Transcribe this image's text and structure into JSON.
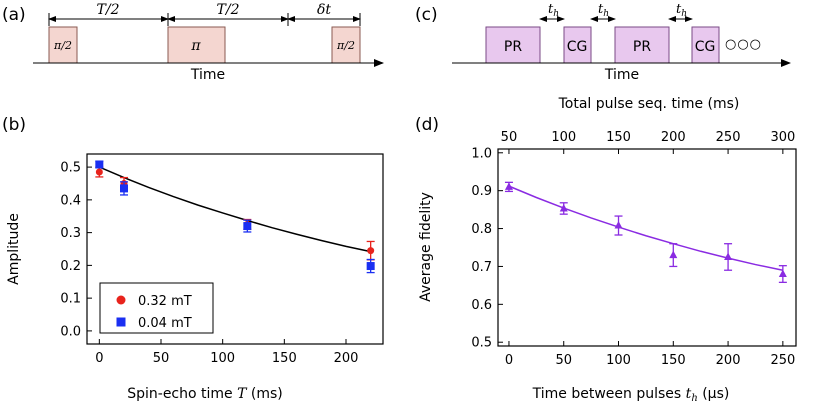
{
  "panels": {
    "a": "(a)",
    "b": "(b)",
    "c": "(c)",
    "d": "(d)"
  },
  "colors": {
    "spin_echo_pulse_fill": "#f4d6d0",
    "spin_echo_pulse_stroke": "#8a5a52",
    "seq_box_fill": "#e8c8ee",
    "seq_box_stroke": "#7a4a86",
    "red_series": "#e8231c",
    "blue_series": "#1a2ff2",
    "fit_black": "#000000",
    "purple": "#8a2be2",
    "circle_stroke": "#6a4a7a"
  },
  "diagram_a": {
    "time_label": "Time",
    "interval_1": "T/2",
    "interval_2": "T/2",
    "interval_3": "δt",
    "pulse_1": "π/2",
    "pulse_2": "π",
    "pulse_3": "π/2"
  },
  "diagram_c": {
    "time_label": "Time",
    "boxes": [
      "PR",
      "CG",
      "PR",
      "CG"
    ],
    "gap_label": "t",
    "gap_sub": "h",
    "ellipsis": "○○○"
  },
  "chart_data": [
    {
      "type": "scatter",
      "panel": "b",
      "xlabel_prefix": "Spin-echo time ",
      "xlabel_var": "T",
      "xlabel_suffix": " (ms)",
      "ylabel": "Amplitude",
      "xlim": [
        -10,
        230
      ],
      "ylim": [
        -0.04,
        0.54
      ],
      "xticks": [
        0,
        50,
        100,
        150,
        200
      ],
      "yticks": [
        0.0,
        0.1,
        0.2,
        0.3,
        0.4,
        0.5
      ],
      "ytick_labels": [
        "0.0",
        "0.1",
        "0.2",
        "0.3",
        "0.4",
        "0.5"
      ],
      "series": [
        {
          "name": "0.32 mT",
          "marker": "circle",
          "color": "#e8231c",
          "x": [
            0,
            20,
            120,
            220
          ],
          "y": [
            0.485,
            0.45,
            0.325,
            0.245
          ],
          "err": [
            0.015,
            0.018,
            0.015,
            0.028
          ]
        },
        {
          "name": "0.04 mT",
          "marker": "square",
          "color": "#1a2ff2",
          "x": [
            0,
            20,
            120,
            220
          ],
          "y": [
            0.508,
            0.435,
            0.32,
            0.198
          ],
          "err": [
            0.01,
            0.02,
            0.018,
            0.02
          ]
        }
      ],
      "fit": {
        "color": "#000000",
        "x": [
          0,
          20,
          40,
          60,
          80,
          100,
          120,
          140,
          160,
          180,
          200,
          220
        ],
        "y": [
          0.5,
          0.468,
          0.438,
          0.41,
          0.384,
          0.36,
          0.337,
          0.315,
          0.295,
          0.276,
          0.258,
          0.242
        ]
      },
      "legend": {
        "position": "lower-left",
        "entries": [
          "0.32 mT",
          "0.04 mT"
        ]
      }
    },
    {
      "type": "scatter",
      "panel": "d",
      "xlabel_prefix": "Time between pulses ",
      "xlabel_var": "t",
      "xlabel_sub": "h",
      "xlabel_suffix": " (μs)",
      "ylabel": "Average fidelity",
      "top_xlabel": "Total pulse seq. time (ms)",
      "xlim": [
        -10,
        262
      ],
      "ylim": [
        0.49,
        1.01
      ],
      "xticks": [
        0,
        50,
        100,
        150,
        200,
        250
      ],
      "top_xticks": [
        50,
        100,
        150,
        200,
        250,
        300
      ],
      "yticks": [
        0.5,
        0.6,
        0.7,
        0.8,
        0.9,
        1.0
      ],
      "ytick_labels": [
        "0.5",
        "0.6",
        "0.7",
        "0.8",
        "0.9",
        "1.0"
      ],
      "series": [
        {
          "name": "fidelity",
          "marker": "triangle",
          "color": "#8a2be2",
          "x": [
            0,
            50,
            100,
            150,
            200,
            250
          ],
          "y": [
            0.91,
            0.853,
            0.808,
            0.73,
            0.725,
            0.68
          ],
          "err": [
            0.012,
            0.015,
            0.025,
            0.03,
            0.035,
            0.022
          ]
        }
      ],
      "fit": {
        "color": "#8a2be2",
        "x": [
          0,
          25,
          50,
          75,
          100,
          125,
          150,
          175,
          200,
          225,
          250
        ],
        "y": [
          0.912,
          0.882,
          0.854,
          0.828,
          0.804,
          0.781,
          0.76,
          0.74,
          0.722,
          0.705,
          0.69
        ]
      }
    }
  ]
}
